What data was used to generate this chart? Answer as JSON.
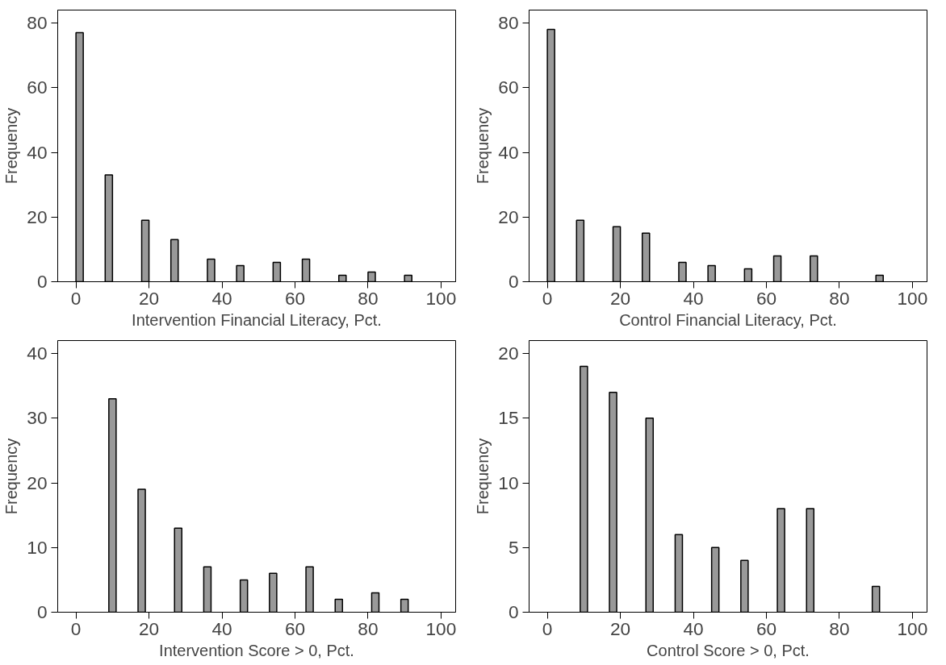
{
  "chart_data": [
    {
      "type": "bar",
      "xlabel": "Intervention Financial Literacy, Pct.",
      "ylabel": "Frequency",
      "x": [
        1,
        9,
        19,
        27,
        37,
        45,
        55,
        63,
        73,
        81,
        91
      ],
      "values": [
        77,
        33,
        19,
        13,
        7,
        5,
        6,
        7,
        2,
        3,
        2
      ],
      "color": "#999999",
      "xlim": [
        -5,
        104
      ],
      "xticks": [
        0,
        20,
        40,
        60,
        80,
        100
      ],
      "ylim": [
        0,
        84
      ],
      "yticks": [
        0,
        20,
        40,
        60,
        80
      ],
      "grid": false
    },
    {
      "type": "bar",
      "xlabel": "Control Financial Literacy, Pct.",
      "ylabel": "Frequency",
      "x": [
        1,
        9,
        19,
        27,
        37,
        45,
        55,
        63,
        73,
        91
      ],
      "values": [
        78,
        19,
        17,
        15,
        6,
        5,
        4,
        8,
        8,
        2
      ],
      "color": "#999999",
      "xlim": [
        -5,
        104
      ],
      "xticks": [
        0,
        20,
        40,
        60,
        80,
        100
      ],
      "ylim": [
        0,
        84
      ],
      "yticks": [
        0,
        20,
        40,
        60,
        80
      ],
      "grid": false
    },
    {
      "type": "bar",
      "xlabel": "Intervention Score > 0, Pct.",
      "ylabel": "Frequency",
      "x": [
        10,
        18,
        28,
        36,
        46,
        54,
        64,
        72,
        82,
        90
      ],
      "values": [
        33,
        19,
        13,
        7,
        5,
        6,
        7,
        2,
        3,
        2
      ],
      "color": "#999999",
      "xlim": [
        -5,
        104
      ],
      "xticks": [
        0,
        20,
        40,
        60,
        80,
        100
      ],
      "ylim": [
        0,
        42
      ],
      "yticks": [
        0,
        10,
        20,
        30,
        40
      ],
      "grid": false
    },
    {
      "type": "bar",
      "xlabel": "Control Score > 0, Pct.",
      "ylabel": "Frequency",
      "x": [
        10,
        18,
        28,
        36,
        46,
        54,
        64,
        72,
        90
      ],
      "values": [
        19,
        17,
        15,
        6,
        5,
        4,
        8,
        8,
        2
      ],
      "color": "#999999",
      "xlim": [
        -5,
        104
      ],
      "xticks": [
        0,
        20,
        40,
        60,
        80,
        100
      ],
      "ylim": [
        0,
        21
      ],
      "yticks": [
        0,
        5,
        10,
        15,
        20
      ],
      "grid": false
    }
  ]
}
